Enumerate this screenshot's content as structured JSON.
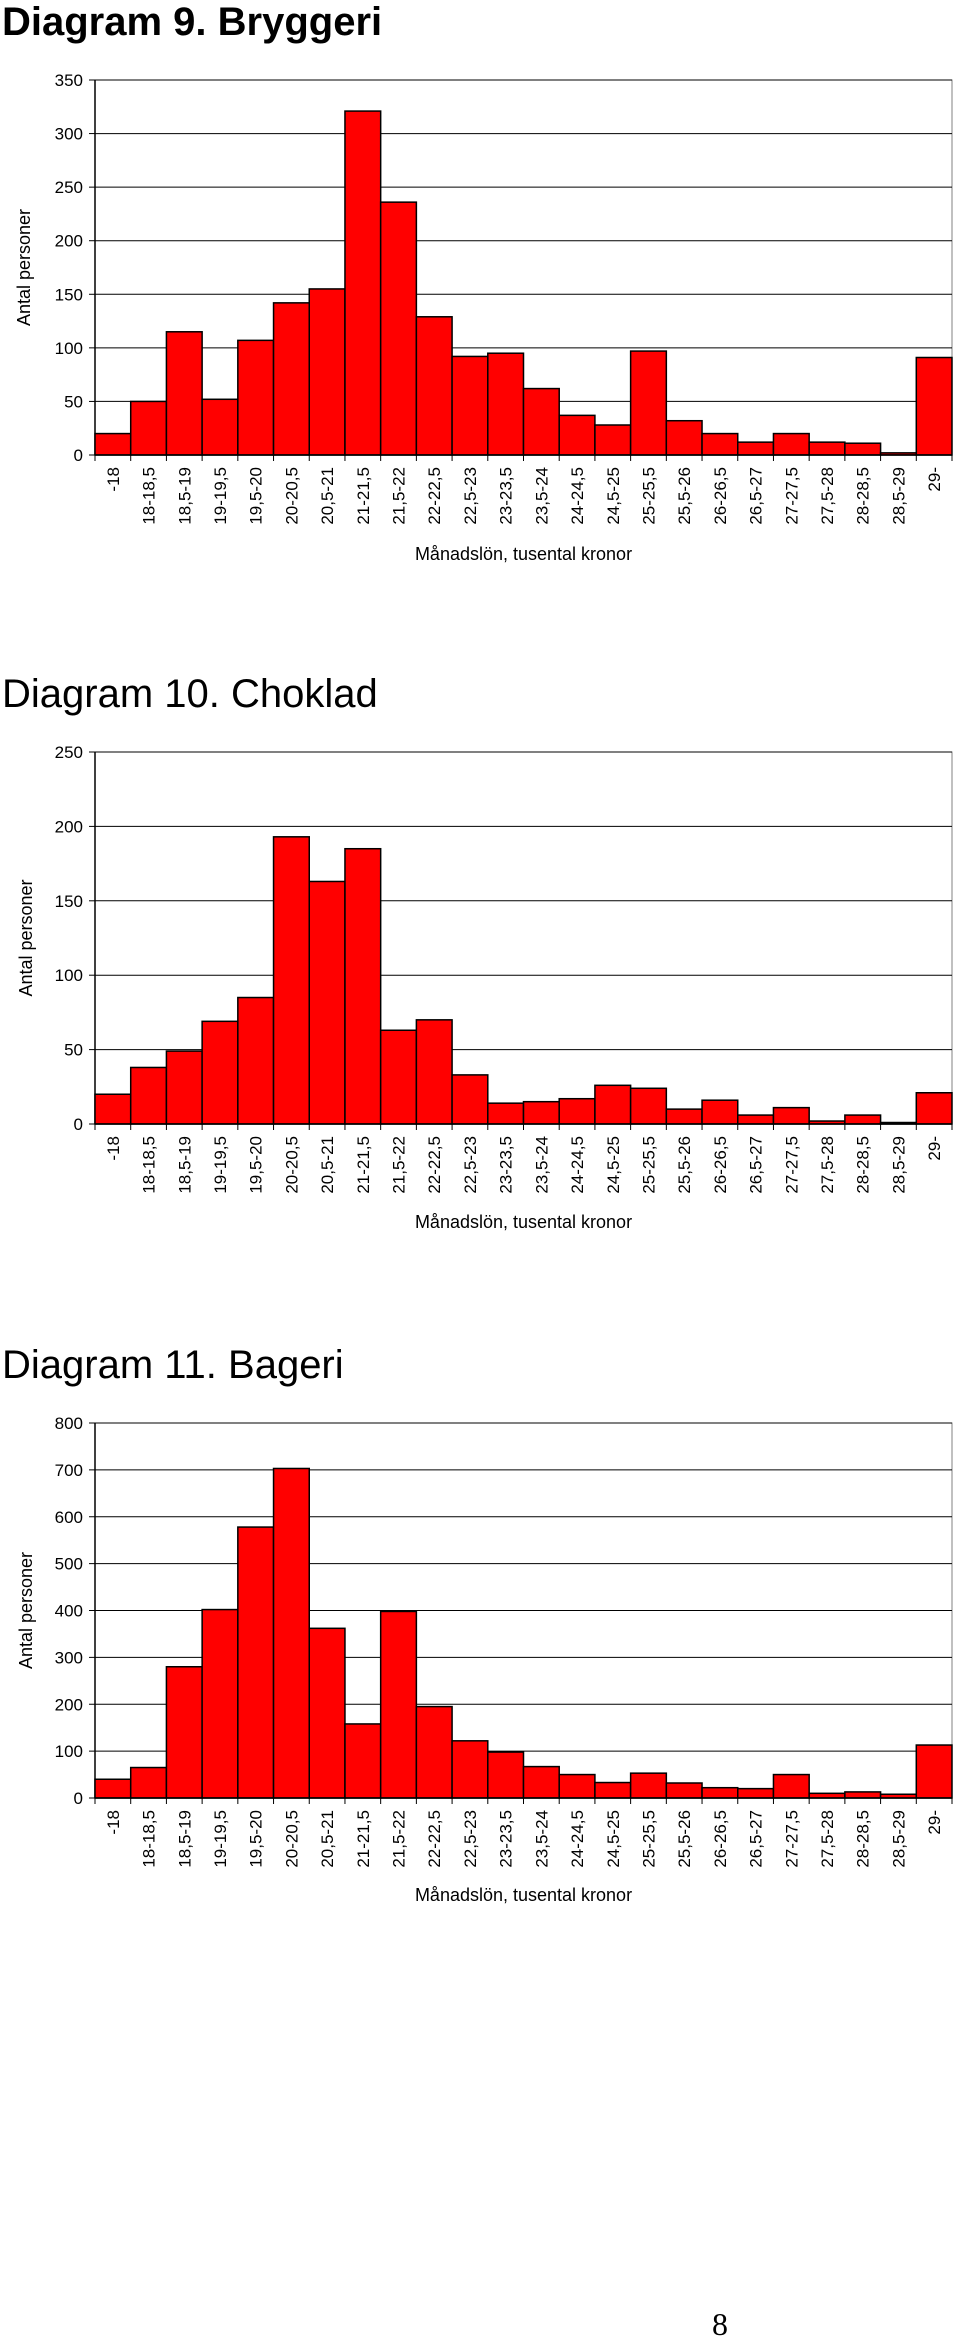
{
  "page": {
    "page_number": "8"
  },
  "chart_data": [
    {
      "type": "bar",
      "title": "Diagram 9. Bryggeri",
      "title_weight": "bold",
      "xlabel": "Månadslön, tusental kronor",
      "ylabel": "Antal personer",
      "ylim": [
        0,
        350
      ],
      "yticks": [
        0,
        50,
        100,
        150,
        200,
        250,
        300,
        350
      ],
      "bar_color": "#ff0000",
      "grid": true,
      "categories": [
        "-18",
        "18-18,5",
        "18,5-19",
        "19-19,5",
        "19,5-20",
        "20-20,5",
        "20,5-21",
        "21-21,5",
        "21,5-22",
        "22-22,5",
        "22,5-23",
        "23-23,5",
        "23,5-24",
        "24-24,5",
        "24,5-25",
        "25-25,5",
        "25,5-26",
        "26-26,5",
        "26,5-27",
        "27-27,5",
        "27,5-28",
        "28-28,5",
        "28,5-29",
        "29-"
      ],
      "values": [
        20,
        50,
        115,
        52,
        107,
        142,
        155,
        321,
        236,
        129,
        92,
        95,
        62,
        37,
        28,
        97,
        32,
        20,
        12,
        20,
        12,
        11,
        2,
        91
      ]
    },
    {
      "type": "bar",
      "title": "Diagram 10. Choklad",
      "title_weight": "normal",
      "xlabel": "Månadslön, tusental kronor",
      "ylabel": "Antal personer",
      "ylim": [
        0,
        250
      ],
      "yticks": [
        0,
        50,
        100,
        150,
        200,
        250
      ],
      "bar_color": "#ff0000",
      "grid": true,
      "categories": [
        "-18",
        "18-18,5",
        "18,5-19",
        "19-19,5",
        "19,5-20",
        "20-20,5",
        "20,5-21",
        "21-21,5",
        "21,5-22",
        "22-22,5",
        "22,5-23",
        "23-23,5",
        "23,5-24",
        "24-24,5",
        "24,5-25",
        "25-25,5",
        "25,5-26",
        "26-26,5",
        "26,5-27",
        "27-27,5",
        "27,5-28",
        "28-28,5",
        "28,5-29",
        "29-"
      ],
      "values": [
        20,
        38,
        49,
        69,
        85,
        193,
        163,
        185,
        63,
        70,
        33,
        14,
        15,
        17,
        26,
        24,
        10,
        16,
        6,
        11,
        2,
        6,
        1,
        21
      ]
    },
    {
      "type": "bar",
      "title": "Diagram 11. Bageri",
      "title_weight": "normal",
      "xlabel": "Månadslön, tusental kronor",
      "ylabel": "Antal personer",
      "ylim": [
        0,
        800
      ],
      "yticks": [
        0,
        100,
        200,
        300,
        400,
        500,
        600,
        700,
        800
      ],
      "bar_color": "#ff0000",
      "grid": true,
      "categories": [
        "-18",
        "18-18,5",
        "18,5-19",
        "19-19,5",
        "19,5-20",
        "20-20,5",
        "20,5-21",
        "21-21,5",
        "21,5-22",
        "22-22,5",
        "22,5-23",
        "23-23,5",
        "23,5-24",
        "24-24,5",
        "24,5-25",
        "25-25,5",
        "25,5-26",
        "26-26,5",
        "26,5-27",
        "27-27,5",
        "27,5-28",
        "28-28,5",
        "28,5-29",
        "29-"
      ],
      "values": [
        40,
        65,
        280,
        402,
        578,
        703,
        362,
        158,
        398,
        195,
        122,
        98,
        67,
        50,
        33,
        53,
        32,
        22,
        20,
        50,
        10,
        13,
        8,
        113
      ]
    }
  ]
}
